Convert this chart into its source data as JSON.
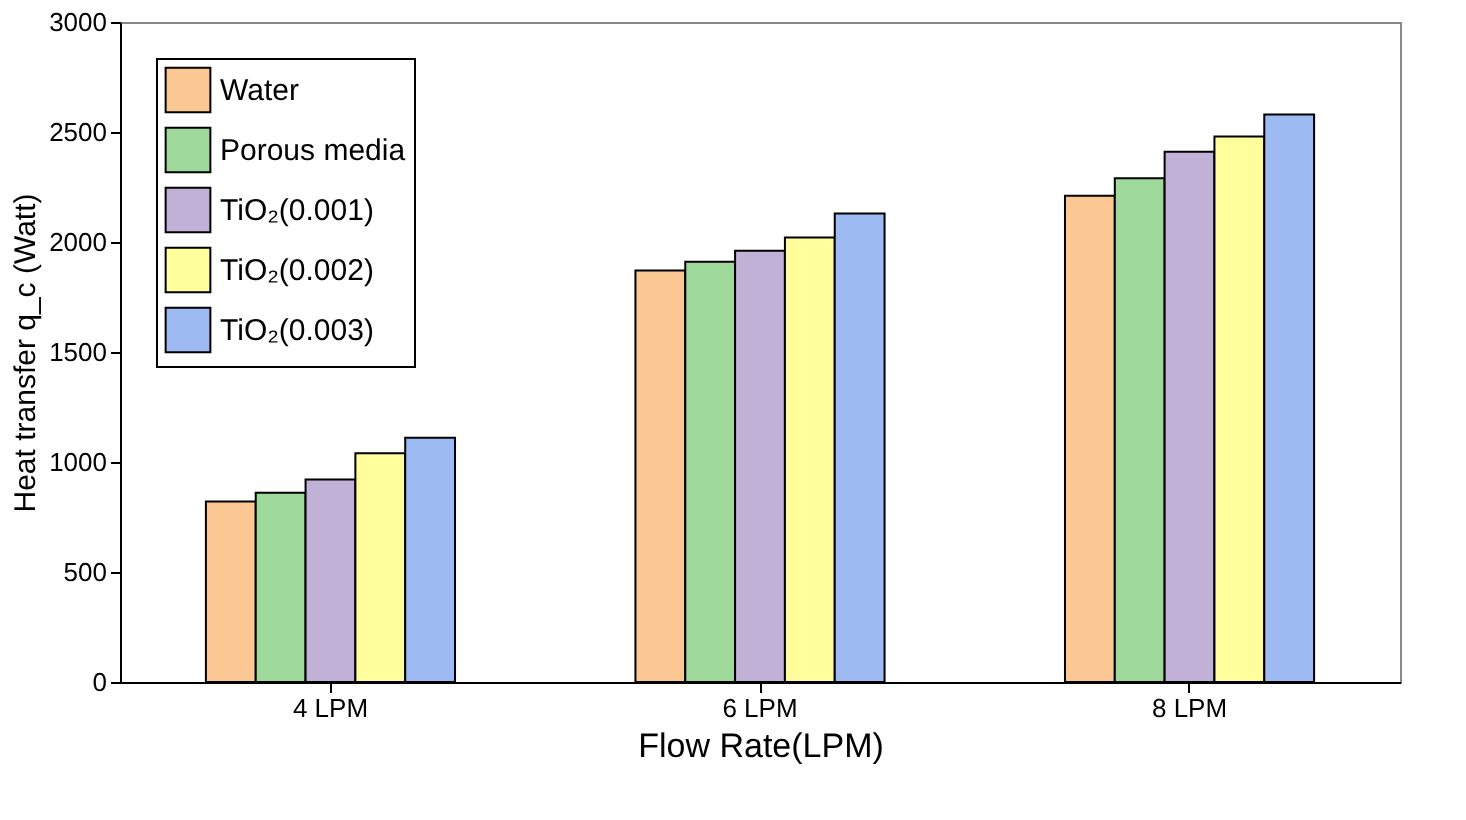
{
  "chart_data": {
    "type": "bar",
    "xlabel": "Flow Rate(LPM)",
    "ylabel": "Heat transfer q_c (Watt)",
    "categories": [
      "4 LPM",
      "6 LPM",
      "8 LPM"
    ],
    "series": [
      {
        "name": "Water",
        "color": "#fbc793",
        "values": [
          820,
          1870,
          2210
        ]
      },
      {
        "name": "Porous media",
        "color": "#9fd89b",
        "values": [
          860,
          1910,
          2290
        ]
      },
      {
        "name": "TiO₂(0.001)",
        "color": "#c1b1d7",
        "values": [
          920,
          1960,
          2410
        ]
      },
      {
        "name": "TiO₂(0.002)",
        "color": "#fffd9c",
        "values": [
          1040,
          2020,
          2480
        ]
      },
      {
        "name": "TiO₂(0.003)",
        "color": "#9dbaf3",
        "values": [
          1110,
          2130,
          2580
        ]
      }
    ],
    "ylim": [
      0,
      3000
    ],
    "yticks": [
      0,
      500,
      1000,
      1500,
      2000,
      2500,
      3000
    ],
    "grid": false,
    "legend": "top left"
  }
}
